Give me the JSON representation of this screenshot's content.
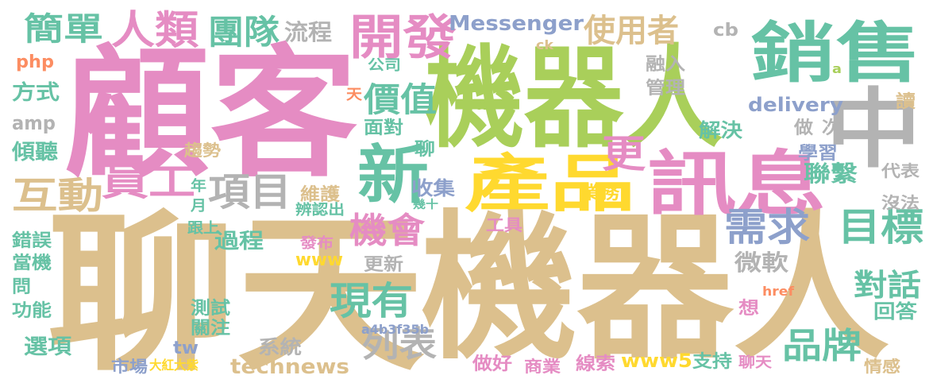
{
  "word_cloud": {
    "palette": {
      "tan": "#dcc08d",
      "pink": "#e58cc3",
      "green": "#a9cf5a",
      "teal": "#66c2a5",
      "orange": "#fc8d62",
      "blue": "#8da0cb",
      "gray": "#b3b3b3",
      "yellow": "#ffd92f"
    },
    "words": [
      {
        "text": "顧客",
        "color": "pink"
      },
      {
        "text": "機器人",
        "color": "green"
      },
      {
        "text": "聊天",
        "color": "tan"
      },
      {
        "text": "機器人",
        "color": "tan"
      },
      {
        "text": "銷售",
        "color": "teal"
      },
      {
        "text": "中",
        "color": "gray"
      },
      {
        "text": "產品",
        "color": "yellow"
      },
      {
        "text": "訊息",
        "color": "pink"
      },
      {
        "text": "新",
        "color": "teal"
      },
      {
        "text": "開發",
        "color": "pink"
      },
      {
        "text": "簡單",
        "color": "teal"
      },
      {
        "text": "人類",
        "color": "pink"
      },
      {
        "text": "團隊",
        "color": "teal"
      },
      {
        "text": "流程",
        "color": "gray"
      },
      {
        "text": "使用者",
        "color": "tan"
      },
      {
        "text": "Messenger",
        "color": "blue"
      },
      {
        "text": "互動",
        "color": "tan"
      },
      {
        "text": "員工",
        "color": "pink"
      },
      {
        "text": "項目",
        "color": "gray"
      },
      {
        "text": "價值",
        "color": "teal"
      },
      {
        "text": "更",
        "color": "pink"
      },
      {
        "text": "目標",
        "color": "teal"
      },
      {
        "text": "需求",
        "color": "blue"
      },
      {
        "text": "聯繫",
        "color": "teal"
      },
      {
        "text": "機會",
        "color": "pink"
      },
      {
        "text": "現有",
        "color": "teal"
      },
      {
        "text": "列表",
        "color": "gray"
      },
      {
        "text": "品牌",
        "color": "teal"
      },
      {
        "text": "對話",
        "color": "teal"
      },
      {
        "text": "微軟",
        "color": "gray"
      },
      {
        "text": "php",
        "color": "orange"
      },
      {
        "text": "方式",
        "color": "teal"
      },
      {
        "text": "amp",
        "color": "gray"
      },
      {
        "text": "傾聽",
        "color": "teal"
      },
      {
        "text": "delivery",
        "color": "blue"
      },
      {
        "text": "讀",
        "color": "tan"
      },
      {
        "text": "做",
        "color": "gray"
      },
      {
        "text": "次",
        "color": "gray"
      },
      {
        "text": "學習",
        "color": "blue"
      },
      {
        "text": "cb",
        "color": "gray"
      },
      {
        "text": "融入",
        "color": "gray"
      },
      {
        "text": "管理",
        "color": "gray"
      },
      {
        "text": "解決",
        "color": "teal"
      },
      {
        "text": "公司",
        "color": "teal"
      },
      {
        "text": "面對",
        "color": "teal"
      },
      {
        "text": "聊",
        "color": "teal"
      },
      {
        "text": "收集",
        "color": "blue"
      },
      {
        "text": "維護",
        "color": "tan"
      },
      {
        "text": "業務",
        "color": "yellow"
      },
      {
        "text": "代表",
        "color": "gray"
      },
      {
        "text": "沒法",
        "color": "gray"
      },
      {
        "text": "過程",
        "color": "teal"
      },
      {
        "text": "www",
        "color": "yellow"
      },
      {
        "text": "更新",
        "color": "gray"
      },
      {
        "text": "錯誤",
        "color": "teal"
      },
      {
        "text": "當機",
        "color": "teal"
      },
      {
        "text": "問",
        "color": "teal"
      },
      {
        "text": "功能",
        "color": "teal"
      },
      {
        "text": "選項",
        "color": "teal"
      },
      {
        "text": "測試",
        "color": "teal"
      },
      {
        "text": "關注",
        "color": "teal"
      },
      {
        "text": "系統",
        "color": "gray"
      },
      {
        "text": "technews",
        "color": "tan"
      },
      {
        "text": "市場",
        "color": "blue"
      },
      {
        "text": "大紅大紫",
        "color": "yellow"
      },
      {
        "text": "tw",
        "color": "blue"
      },
      {
        "text": "a4b3f35b",
        "color": "blue"
      },
      {
        "text": "做好",
        "color": "pink"
      },
      {
        "text": "商業",
        "color": "pink"
      },
      {
        "text": "線索",
        "color": "pink"
      },
      {
        "text": "www5",
        "color": "yellow"
      },
      {
        "text": "支持",
        "color": "teal"
      },
      {
        "text": "聊天",
        "color": "pink"
      },
      {
        "text": "情感",
        "color": "tan"
      },
      {
        "text": "回答",
        "color": "teal"
      },
      {
        "text": "想",
        "color": "pink"
      },
      {
        "text": "href",
        "color": "orange"
      },
      {
        "text": "工具",
        "color": "pink"
      },
      {
        "text": "發布",
        "color": "pink"
      },
      {
        "text": "趨勢",
        "color": "tan"
      },
      {
        "text": "跟上",
        "color": "teal"
      },
      {
        "text": "辨認出",
        "color": "teal"
      },
      {
        "text": "年",
        "color": "teal"
      },
      {
        "text": "月",
        "color": "teal"
      },
      {
        "text": "n",
        "color": "green"
      },
      {
        "text": "天",
        "color": "orange"
      },
      {
        "text": "ck",
        "color": "tan"
      },
      {
        "text": "a",
        "color": "green"
      },
      {
        "text": "幾十",
        "color": "teal"
      }
    ]
  }
}
